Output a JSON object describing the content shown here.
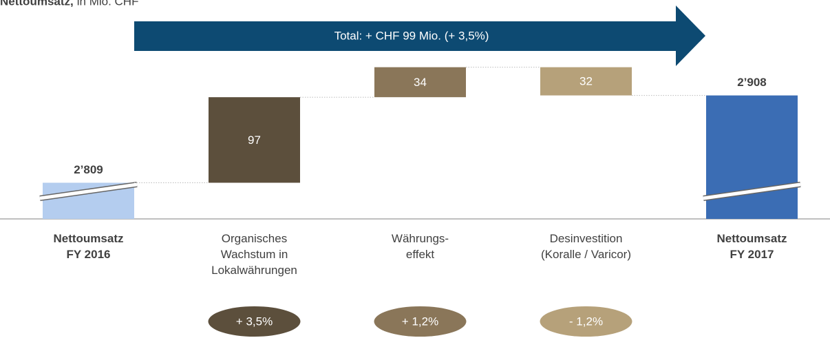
{
  "chart_data": {
    "type": "waterfall",
    "title": "Nettoumsatz,",
    "subtitle": "in Mio. CHF",
    "annotation": "Total: + CHF 99 Mio. (+ 3,5%)",
    "categories": [
      "Nettoumsatz\nFY 2016",
      "Organisches\nWachstum in\nLokalwährungen",
      "Währungs-\neffekt",
      "Desinvestition\n(Koralle / Varicor)",
      "Nettoumsatz\nFY 2017"
    ],
    "measure": [
      "absolute",
      "relative",
      "relative",
      "relative",
      "absolute"
    ],
    "values": [
      2809,
      97,
      34,
      -32,
      2908
    ],
    "value_labels": [
      "2’809",
      "97",
      "34",
      "32",
      "2’908"
    ],
    "pct_labels": [
      null,
      "+ 3,5%",
      "+ 1,2%",
      "- 1,2%",
      null
    ],
    "colors": [
      "#b4cdef",
      "#5c4f3c",
      "#8a7659",
      "#b6a17a",
      "#3b6db4"
    ],
    "arrow_color": "#0d4a72",
    "ylim": [
      2768,
      2960
    ],
    "axis_break": true
  }
}
